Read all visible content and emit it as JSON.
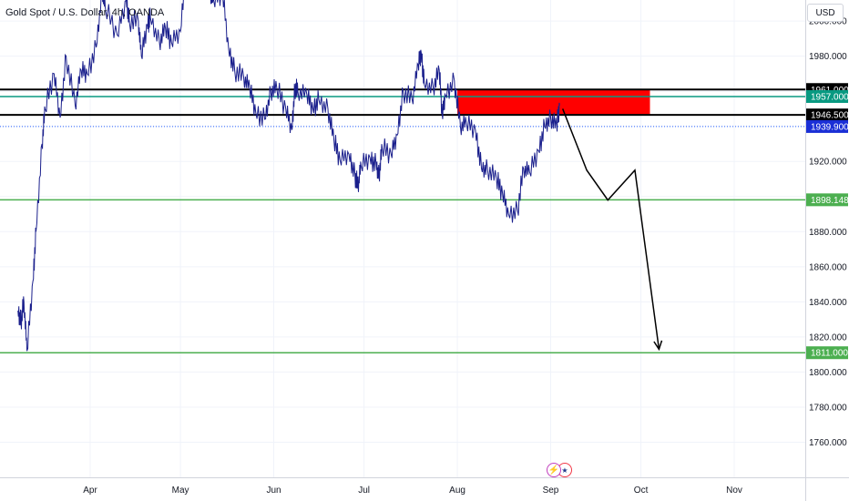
{
  "header": {
    "title": "Gold Spot / U.S. Dollar, 4h, OANDA",
    "currency": "USD"
  },
  "chart_data": {
    "type": "line",
    "title": "Gold Spot / U.S. Dollar, 4h, OANDA",
    "xlabel": "",
    "ylabel": "",
    "ylim": [
      1740,
      2012
    ],
    "x_ticks": [
      "Apr",
      "May",
      "Jun",
      "Jul",
      "Aug",
      "Sep",
      "Oct",
      "Nov"
    ],
    "y_ticks": [
      1760,
      1780,
      1800,
      1820,
      1840,
      1860,
      1880,
      1900,
      1920,
      1940,
      1960,
      1980,
      2000
    ],
    "y_tick_labels": [
      "1760.000",
      "1780.000",
      "1800.000",
      "1820.000",
      "1840.000",
      "1860.000",
      "1880.000",
      "1900.000",
      "1920.000",
      "1940.000",
      "1960.000",
      "1980.000",
      "2000.000"
    ],
    "series": [
      {
        "values": [
          [
            "03-08",
            1835
          ],
          [
            "03-09",
            1829
          ],
          [
            "03-10",
            1840
          ],
          [
            "03-11",
            1812
          ],
          [
            "03-13",
            1852
          ],
          [
            "03-14",
            1880
          ],
          [
            "03-16",
            1930
          ],
          [
            "03-17",
            1950
          ],
          [
            "03-20",
            1970
          ],
          [
            "03-22",
            1945
          ],
          [
            "03-24",
            1980
          ],
          [
            "03-27",
            1952
          ],
          [
            "03-29",
            1972
          ],
          [
            "03-31",
            1970
          ],
          [
            "04-03",
            1985
          ],
          [
            "04-05",
            2018
          ],
          [
            "04-06",
            2008
          ],
          [
            "04-10",
            1992
          ],
          [
            "04-13",
            2012
          ],
          [
            "04-14",
            2000
          ],
          [
            "04-17",
            2000
          ],
          [
            "04-18",
            1980
          ],
          [
            "04-20",
            1998
          ],
          [
            "04-21",
            2002
          ],
          [
            "04-24",
            1988
          ],
          [
            "04-26",
            1996
          ],
          [
            "04-28",
            1988
          ],
          [
            "05-01",
            1994
          ],
          [
            "05-03",
            2036
          ],
          [
            "05-04",
            2050
          ],
          [
            "05-05",
            2018
          ],
          [
            "05-08",
            2028
          ],
          [
            "05-10",
            2032
          ],
          [
            "05-11",
            2016
          ],
          [
            "05-12",
            2012
          ],
          [
            "05-15",
            2016
          ],
          [
            "05-17",
            1984
          ],
          [
            "05-19",
            1972
          ],
          [
            "05-22",
            1968
          ],
          [
            "05-24",
            1962
          ],
          [
            "05-26",
            1948
          ],
          [
            "05-29",
            1944
          ],
          [
            "05-31",
            1960
          ],
          [
            "06-02",
            1962
          ],
          [
            "06-05",
            1950
          ],
          [
            "06-07",
            1938
          ],
          [
            "06-08",
            1962
          ],
          [
            "06-09",
            1960
          ],
          [
            "06-12",
            1958
          ],
          [
            "06-14",
            1950
          ],
          [
            "06-16",
            1955
          ],
          [
            "06-19",
            1950
          ],
          [
            "06-21",
            1932
          ],
          [
            "06-23",
            1921
          ],
          [
            "06-26",
            1924
          ],
          [
            "06-28",
            1912
          ],
          [
            "06-29",
            1906
          ],
          [
            "06-30",
            1918
          ],
          [
            "07-03",
            1922
          ],
          [
            "07-05",
            1918
          ],
          [
            "07-06",
            1912
          ],
          [
            "07-07",
            1928
          ],
          [
            "07-10",
            1924
          ],
          [
            "07-12",
            1935
          ],
          [
            "07-14",
            1960
          ],
          [
            "07-17",
            1955
          ],
          [
            "07-19",
            1975
          ],
          [
            "07-20",
            1982
          ],
          [
            "07-21",
            1964
          ],
          [
            "07-24",
            1962
          ],
          [
            "07-26",
            1972
          ],
          [
            "07-27",
            1946
          ],
          [
            "07-28",
            1958
          ],
          [
            "07-31",
            1966
          ],
          [
            "08-02",
            1940
          ],
          [
            "08-04",
            1942
          ],
          [
            "08-07",
            1938
          ],
          [
            "08-09",
            1916
          ],
          [
            "08-11",
            1916
          ],
          [
            "08-14",
            1910
          ],
          [
            "08-16",
            1902
          ],
          [
            "08-18",
            1890
          ],
          [
            "08-21",
            1892
          ],
          [
            "08-23",
            1916
          ],
          [
            "08-25",
            1914
          ],
          [
            "08-28",
            1926
          ],
          [
            "08-30",
            1940
          ],
          [
            "09-01",
            1945
          ],
          [
            "09-03",
            1940
          ],
          [
            "09-04",
            1952
          ]
        ]
      }
    ],
    "horizontal_levels": [
      {
        "value": 1961.0,
        "label": "1961.000",
        "style": "solid",
        "color": "#000000",
        "label_bg": "#000000"
      },
      {
        "value": 1957.0,
        "label": "1957.000",
        "style": "solid",
        "color": "#089981",
        "label_bg": "#089981"
      },
      {
        "value": 1946.5,
        "label": "1946.500",
        "style": "solid",
        "color": "#000000",
        "label_bg": "#000000"
      },
      {
        "value": 1939.9,
        "label": "1939.900",
        "style": "dotted",
        "color": "#2962ff",
        "label_bg": "#1a2fd6"
      },
      {
        "value": 1898.148,
        "label": "1898.148",
        "style": "solid",
        "color": "#4caf50",
        "label_bg": "#4caf50"
      },
      {
        "value": 1811.0,
        "label": "1811.000",
        "style": "solid",
        "color": "#4caf50",
        "label_bg": "#4caf50"
      }
    ],
    "supply_zone": {
      "from_date": "08-01",
      "to_date": "10-04",
      "top": 1961.0,
      "bottom": 1946.5,
      "color": "#ff0000"
    },
    "projection": {
      "color": "#000000",
      "points": [
        [
          "09-05",
          1950
        ],
        [
          "09-13",
          1915
        ],
        [
          "09-20",
          1898
        ],
        [
          "09-29",
          1915
        ],
        [
          "10-07",
          1813
        ]
      ]
    }
  },
  "colors": {
    "price_line": "#1a1f8c",
    "grid": "#f0f3fa",
    "axis_text": "#131722",
    "axis_border": "#d1d4dc"
  },
  "events": {
    "icons": [
      "lightning-icon",
      "us-flag-icon"
    ]
  }
}
